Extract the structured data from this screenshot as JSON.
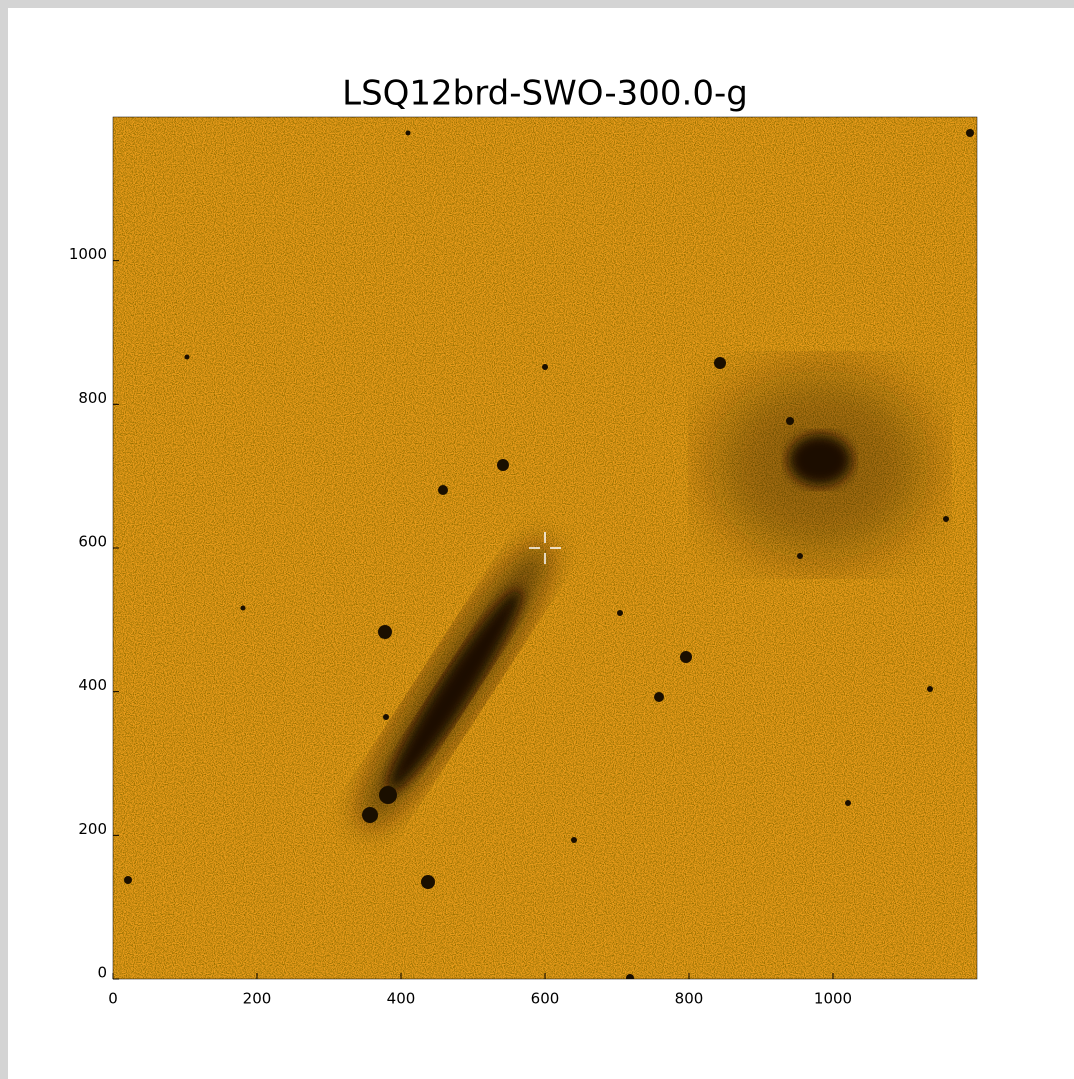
{
  "chart_data": {
    "type": "image",
    "title": "LSQ12brd-SWO-300.0-g",
    "xlim": [
      0,
      1200
    ],
    "ylim": [
      0,
      1200
    ],
    "xticks": [
      0,
      200,
      400,
      600,
      800,
      1000
    ],
    "yticks": [
      0,
      200,
      400,
      600,
      800,
      1000
    ],
    "target": {
      "x": 600,
      "y": 600
    }
  }
}
